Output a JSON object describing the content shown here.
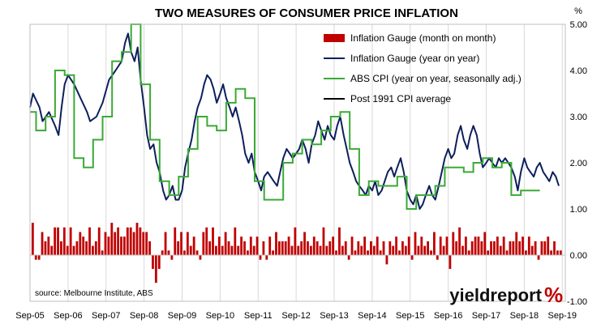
{
  "chart_data": {
    "type": "line",
    "title": "TWO MEASURES OF CONSUMER PRICE INFLATION",
    "ylabel": "%",
    "ylim": [
      -1.0,
      5.0
    ],
    "yticks": [
      "-1.00",
      "0.00",
      "1.00",
      "2.00",
      "3.00",
      "4.00",
      "5.00"
    ],
    "x_ticks": [
      "Sep-05",
      "Sep-06",
      "Sep-07",
      "Sep-08",
      "Sep-09",
      "Sep-10",
      "Sep-11",
      "Sep-12",
      "Sep-13",
      "Sep-14",
      "Sep-15",
      "Sep-16",
      "Sep-17",
      "Sep-18",
      "Sep-19"
    ],
    "x_start": 2005.67,
    "x_end": 2019.75,
    "grid": "vertical",
    "legend_position": "top-right",
    "series": [
      {
        "name": "Inflation Gauge (month on month)",
        "type": "bar",
        "color": "#c00000",
        "values": [
          0.7,
          -0.1,
          -0.1,
          0.5,
          0.3,
          0.4,
          0.2,
          0.6,
          0.6,
          0.3,
          0.6,
          0.2,
          0.6,
          0.2,
          0.3,
          0.5,
          0.4,
          0.3,
          0.6,
          0.2,
          0.3,
          0.6,
          0.1,
          0.5,
          0.4,
          0.7,
          0.5,
          0.6,
          0.4,
          0.4,
          0.6,
          0.6,
          0.5,
          0.7,
          0.6,
          0.5,
          0.5,
          0.3,
          -0.3,
          -0.6,
          -0.3,
          0.1,
          0.5,
          0.1,
          -0.1,
          0.6,
          0.3,
          0.5,
          0.1,
          0.5,
          0.2,
          0.4,
          0.1,
          -0.1,
          0.5,
          0.6,
          0.3,
          0.6,
          0.2,
          0.4,
          0.2,
          0.5,
          0.3,
          0.2,
          0.6,
          0.2,
          0.4,
          0.3,
          0.1,
          0.4,
          0.2,
          0.4,
          -0.1,
          0.3,
          -0.1,
          0.4,
          0.1,
          0.5,
          0.3,
          0.3,
          0.3,
          0.4,
          0.2,
          0.6,
          0.2,
          0.3,
          0.5,
          0.3,
          0.2,
          0.4,
          0.3,
          0.2,
          0.6,
          0.2,
          0.3,
          0.4,
          0.1,
          0.6,
          0.2,
          0.3,
          -0.1,
          0.4,
          0.1,
          0.3,
          0.2,
          0.4,
          0.1,
          0.3,
          0.2,
          0.4,
          0.1,
          0.3,
          -0.2,
          0.3,
          0.2,
          0.4,
          0.1,
          0.3,
          0.2,
          0.4,
          -0.1,
          0.5,
          0.2,
          0.4,
          0.2,
          0.3,
          0.1,
          0.5,
          -0.1,
          0.4,
          0.2,
          0.4,
          -0.3,
          0.5,
          0.3,
          0.6,
          0.2,
          0.4,
          0.1,
          0.3,
          0.4,
          0.4,
          0.3,
          0.5,
          0.1,
          0.3,
          0.3,
          0.4,
          0.2,
          0.4,
          0.1,
          0.3,
          0.3,
          0.5,
          0.3,
          0.4,
          0.1,
          0.4,
          0.2,
          0.3,
          -0.1,
          0.3,
          0.3,
          0.4,
          0.1,
          0.3,
          0.1,
          0.1
        ]
      },
      {
        "name": "Inflation Gauge (year on year)",
        "type": "line",
        "color": "#0d1f5c",
        "points": [
          [
            2005.67,
            3.2
          ],
          [
            2005.75,
            3.5
          ],
          [
            2005.92,
            3.2
          ],
          [
            2006.0,
            2.9
          ],
          [
            2006.17,
            3.1
          ],
          [
            2006.33,
            2.8
          ],
          [
            2006.42,
            2.6
          ],
          [
            2006.5,
            3.2
          ],
          [
            2006.58,
            3.7
          ],
          [
            2006.67,
            3.9
          ],
          [
            2006.83,
            3.7
          ],
          [
            2007.0,
            3.4
          ],
          [
            2007.17,
            3.1
          ],
          [
            2007.25,
            2.9
          ],
          [
            2007.42,
            3.0
          ],
          [
            2007.58,
            3.3
          ],
          [
            2007.75,
            3.8
          ],
          [
            2007.92,
            4.0
          ],
          [
            2008.08,
            4.2
          ],
          [
            2008.17,
            4.6
          ],
          [
            2008.25,
            4.8
          ],
          [
            2008.33,
            4.4
          ],
          [
            2008.42,
            4.2
          ],
          [
            2008.5,
            4.5
          ],
          [
            2008.58,
            3.8
          ],
          [
            2008.67,
            3.2
          ],
          [
            2008.75,
            2.6
          ],
          [
            2008.83,
            2.3
          ],
          [
            2008.92,
            2.4
          ],
          [
            2009.0,
            2.0
          ],
          [
            2009.08,
            1.8
          ],
          [
            2009.17,
            1.4
          ],
          [
            2009.25,
            1.2
          ],
          [
            2009.33,
            1.3
          ],
          [
            2009.42,
            1.5
          ],
          [
            2009.5,
            1.2
          ],
          [
            2009.58,
            1.2
          ],
          [
            2009.67,
            1.4
          ],
          [
            2009.75,
            1.9
          ],
          [
            2009.83,
            2.2
          ],
          [
            2009.92,
            2.5
          ],
          [
            2010.0,
            2.9
          ],
          [
            2010.08,
            3.2
          ],
          [
            2010.17,
            3.4
          ],
          [
            2010.25,
            3.7
          ],
          [
            2010.33,
            3.9
          ],
          [
            2010.42,
            3.8
          ],
          [
            2010.5,
            3.6
          ],
          [
            2010.58,
            3.3
          ],
          [
            2010.67,
            3.5
          ],
          [
            2010.75,
            3.7
          ],
          [
            2010.83,
            3.4
          ],
          [
            2010.92,
            3.2
          ],
          [
            2011.0,
            3.0
          ],
          [
            2011.08,
            3.2
          ],
          [
            2011.17,
            2.9
          ],
          [
            2011.25,
            2.6
          ],
          [
            2011.33,
            2.2
          ],
          [
            2011.42,
            2.0
          ],
          [
            2011.5,
            2.2
          ],
          [
            2011.58,
            1.8
          ],
          [
            2011.67,
            1.6
          ],
          [
            2011.75,
            1.4
          ],
          [
            2011.83,
            1.7
          ],
          [
            2011.92,
            1.8
          ],
          [
            2012.0,
            1.7
          ],
          [
            2012.08,
            1.6
          ],
          [
            2012.17,
            1.5
          ],
          [
            2012.25,
            1.8
          ],
          [
            2012.33,
            2.1
          ],
          [
            2012.42,
            2.3
          ],
          [
            2012.5,
            2.2
          ],
          [
            2012.58,
            2.1
          ],
          [
            2012.67,
            2.2
          ],
          [
            2012.75,
            2.3
          ],
          [
            2012.83,
            2.5
          ],
          [
            2012.92,
            2.3
          ],
          [
            2013.0,
            2.0
          ],
          [
            2013.08,
            2.4
          ],
          [
            2013.17,
            2.6
          ],
          [
            2013.25,
            2.9
          ],
          [
            2013.33,
            2.7
          ],
          [
            2013.42,
            2.5
          ],
          [
            2013.5,
            2.8
          ],
          [
            2013.58,
            2.6
          ],
          [
            2013.67,
            2.5
          ],
          [
            2013.75,
            2.8
          ],
          [
            2013.83,
            3.0
          ],
          [
            2013.92,
            2.6
          ],
          [
            2014.0,
            2.3
          ],
          [
            2014.08,
            2.0
          ],
          [
            2014.17,
            1.8
          ],
          [
            2014.25,
            1.6
          ],
          [
            2014.33,
            1.5
          ],
          [
            2014.42,
            1.4
          ],
          [
            2014.5,
            1.3
          ],
          [
            2014.58,
            1.5
          ],
          [
            2014.67,
            1.4
          ],
          [
            2014.75,
            1.6
          ],
          [
            2014.83,
            1.3
          ],
          [
            2014.92,
            1.4
          ],
          [
            2015.0,
            1.6
          ],
          [
            2015.08,
            1.8
          ],
          [
            2015.17,
            1.9
          ],
          [
            2015.25,
            1.7
          ],
          [
            2015.33,
            1.9
          ],
          [
            2015.42,
            2.1
          ],
          [
            2015.5,
            1.8
          ],
          [
            2015.58,
            1.4
          ],
          [
            2015.67,
            1.2
          ],
          [
            2015.75,
            1.1
          ],
          [
            2015.83,
            1.3
          ],
          [
            2015.92,
            1.0
          ],
          [
            2016.0,
            1.1
          ],
          [
            2016.08,
            1.3
          ],
          [
            2016.17,
            1.5
          ],
          [
            2016.25,
            1.3
          ],
          [
            2016.33,
            1.2
          ],
          [
            2016.42,
            1.5
          ],
          [
            2016.5,
            1.8
          ],
          [
            2016.58,
            2.1
          ],
          [
            2016.67,
            2.3
          ],
          [
            2016.75,
            2.1
          ],
          [
            2016.83,
            2.2
          ],
          [
            2016.92,
            2.6
          ],
          [
            2017.0,
            2.8
          ],
          [
            2017.08,
            2.5
          ],
          [
            2017.17,
            2.3
          ],
          [
            2017.25,
            2.6
          ],
          [
            2017.33,
            2.8
          ],
          [
            2017.42,
            2.6
          ],
          [
            2017.5,
            2.2
          ],
          [
            2017.58,
            1.9
          ],
          [
            2017.67,
            2.0
          ],
          [
            2017.75,
            2.1
          ],
          [
            2017.83,
            2.0
          ],
          [
            2017.92,
            1.9
          ],
          [
            2018.0,
            2.1
          ],
          [
            2018.08,
            2.0
          ],
          [
            2018.17,
            2.1
          ],
          [
            2018.25,
            2.0
          ],
          [
            2018.33,
            1.9
          ],
          [
            2018.42,
            1.7
          ],
          [
            2018.5,
            1.4
          ],
          [
            2018.58,
            1.8
          ],
          [
            2018.67,
            2.1
          ],
          [
            2018.75,
            1.9
          ],
          [
            2018.83,
            1.8
          ],
          [
            2018.92,
            1.7
          ],
          [
            2019.0,
            1.9
          ],
          [
            2019.08,
            2.0
          ],
          [
            2019.17,
            1.8
          ],
          [
            2019.25,
            1.7
          ],
          [
            2019.33,
            1.6
          ],
          [
            2019.42,
            1.8
          ],
          [
            2019.5,
            1.7
          ],
          [
            2019.58,
            1.5
          ]
        ]
      },
      {
        "name": "ABS CPI (year on year, seasonally adj.)",
        "type": "step",
        "color": "#3aaa35",
        "points": [
          [
            2005.67,
            3.1
          ],
          [
            2005.83,
            2.7
          ],
          [
            2006.08,
            3.0
          ],
          [
            2006.33,
            4.0
          ],
          [
            2006.58,
            3.9
          ],
          [
            2006.83,
            2.1
          ],
          [
            2007.08,
            1.9
          ],
          [
            2007.33,
            2.5
          ],
          [
            2007.58,
            3.0
          ],
          [
            2007.83,
            4.2
          ],
          [
            2008.08,
            4.4
          ],
          [
            2008.33,
            5.0
          ],
          [
            2008.58,
            3.7
          ],
          [
            2008.83,
            2.5
          ],
          [
            2009.08,
            1.6
          ],
          [
            2009.33,
            1.3
          ],
          [
            2009.58,
            1.7
          ],
          [
            2009.83,
            2.3
          ],
          [
            2010.08,
            3.0
          ],
          [
            2010.33,
            2.8
          ],
          [
            2010.58,
            2.7
          ],
          [
            2010.83,
            3.3
          ],
          [
            2011.08,
            3.6
          ],
          [
            2011.33,
            3.4
          ],
          [
            2011.58,
            1.6
          ],
          [
            2011.83,
            1.2
          ],
          [
            2012.08,
            1.2
          ],
          [
            2012.33,
            2.0
          ],
          [
            2012.58,
            2.2
          ],
          [
            2012.83,
            2.5
          ],
          [
            2013.08,
            2.4
          ],
          [
            2013.33,
            2.7
          ],
          [
            2013.58,
            3.0
          ],
          [
            2013.83,
            3.1
          ],
          [
            2014.08,
            2.3
          ],
          [
            2014.33,
            1.3
          ],
          [
            2014.58,
            1.6
          ],
          [
            2014.83,
            1.5
          ],
          [
            2015.08,
            1.5
          ],
          [
            2015.33,
            1.7
          ],
          [
            2015.58,
            1.0
          ],
          [
            2015.83,
            1.3
          ],
          [
            2016.08,
            1.3
          ],
          [
            2016.33,
            1.5
          ],
          [
            2016.58,
            1.9
          ],
          [
            2016.83,
            1.9
          ],
          [
            2017.08,
            1.8
          ],
          [
            2017.33,
            2.0
          ],
          [
            2017.58,
            2.1
          ],
          [
            2017.83,
            1.9
          ],
          [
            2018.08,
            2.0
          ],
          [
            2018.33,
            1.3
          ],
          [
            2018.58,
            1.4
          ],
          [
            2018.83,
            1.4
          ]
        ]
      },
      {
        "name": "Post 1991 CPI average",
        "type": "line",
        "color": "#000000",
        "points": []
      }
    ]
  },
  "source_note": "source: Melbourne Institute, ABS",
  "brand": {
    "text": "yieldreport",
    "symbol": "%",
    "text_color": "#111111",
    "symbol_color": "#c00000"
  }
}
